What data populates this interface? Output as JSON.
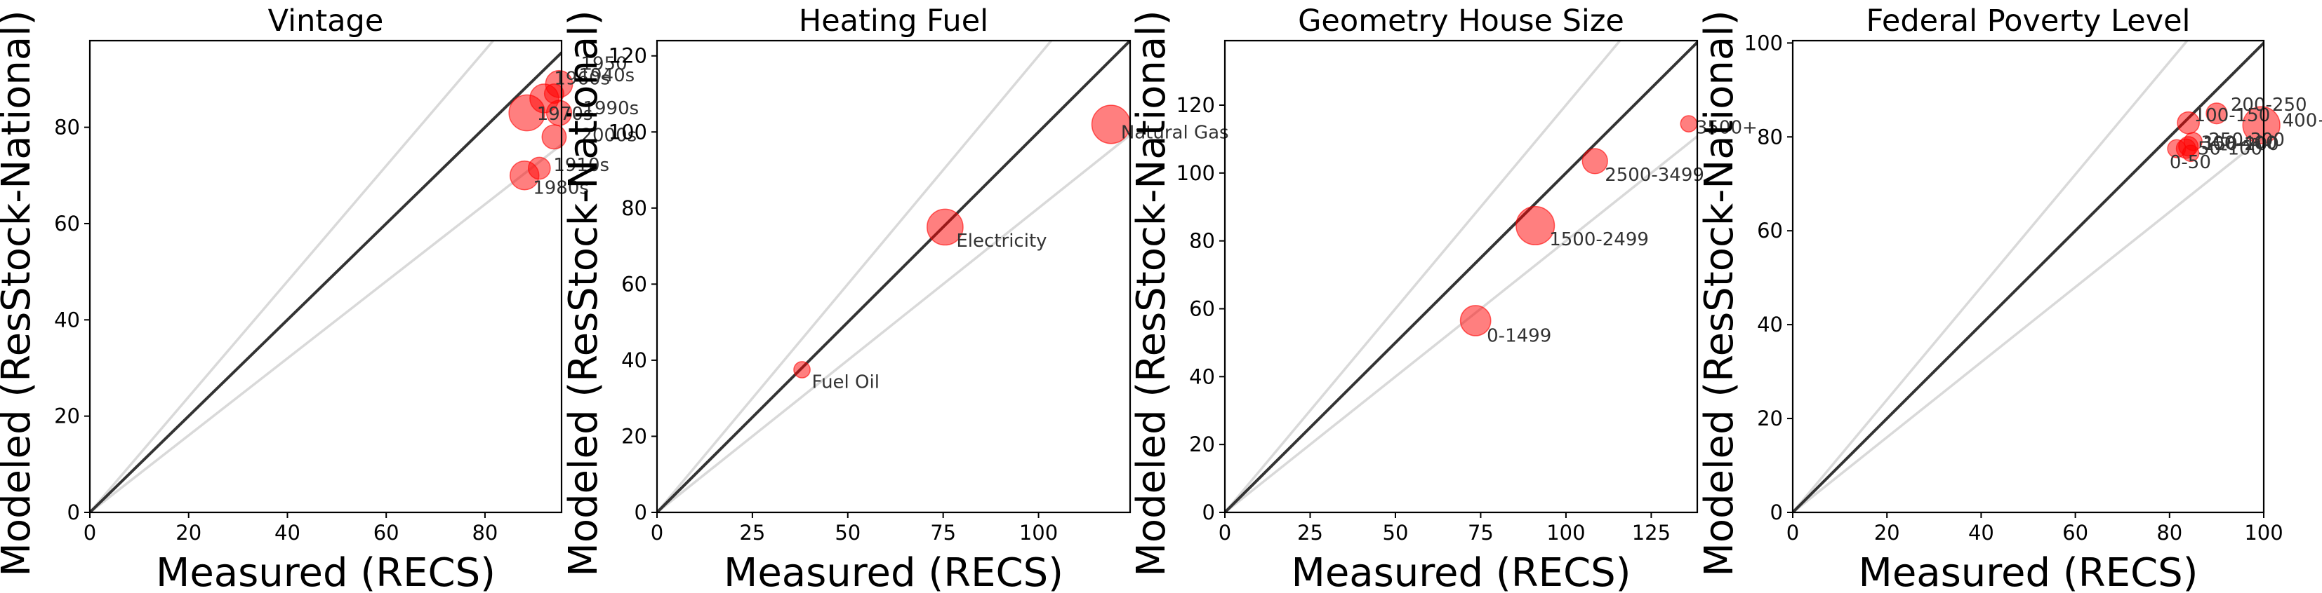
{
  "colors": {
    "point": "#ff0000",
    "identity_line": "#333333",
    "reference_lines": "#d9d9d9"
  },
  "chart_data": [
    {
      "type": "scatter",
      "title": "Vintage",
      "xlabel": "Measured (RECS)",
      "ylabel": "Modeled (ResStock-National)",
      "xlim": [
        0,
        95.5
      ],
      "ylim": [
        0,
        98
      ],
      "xticks": [
        0,
        20,
        40,
        60,
        80
      ],
      "yticks": [
        0,
        20,
        40,
        60,
        80
      ],
      "reference_lines": "y = x (dark); y = 1.2x and y = 0.8x (light gray)",
      "points": [
        {
          "label": "1950",
          "x": 94,
          "y": 87,
          "weight": 5
        },
        {
          "label": "1960s",
          "x": 92,
          "y": 86,
          "weight": 14
        },
        {
          "label": "1970s",
          "x": 88.5,
          "y": 83,
          "weight": 24
        },
        {
          "label": "1940s",
          "x": 95,
          "y": 89,
          "weight": 12
        },
        {
          "label": "1990s",
          "x": 95,
          "y": 83,
          "weight": 10
        },
        {
          "label": "2000s",
          "x": 94,
          "y": 78,
          "weight": 9
        },
        {
          "label": "1910s",
          "x": 91,
          "y": 71.5,
          "weight": 7
        },
        {
          "label": "1980s",
          "x": 88,
          "y": 70,
          "weight": 14
        }
      ]
    },
    {
      "type": "scatter",
      "title": "Heating Fuel",
      "xlabel": "Measured (RECS)",
      "ylabel": "Modeled (ResStock-National)",
      "xlim": [
        0,
        124
      ],
      "ylim": [
        0,
        124
      ],
      "xticks": [
        0,
        25,
        50,
        75,
        100
      ],
      "yticks": [
        0,
        20,
        40,
        60,
        80,
        100,
        120
      ],
      "reference_lines": "y = x (dark); y = 1.2x and y = 0.8x (light gray)",
      "points": [
        {
          "label": "Natural Gas",
          "x": 119,
          "y": 102,
          "weight": 28
        },
        {
          "label": "Electricity",
          "x": 75.5,
          "y": 75,
          "weight": 24
        },
        {
          "label": "Fuel Oil",
          "x": 38,
          "y": 37.5,
          "weight": 3
        }
      ]
    },
    {
      "type": "scatter",
      "title": "Geometry House Size",
      "xlabel": "Measured (RECS)",
      "ylabel": "Modeled (ResStock-National)",
      "xlim": [
        0,
        138.5
      ],
      "ylim": [
        0,
        139
      ],
      "xticks": [
        0,
        25,
        50,
        75,
        100,
        125
      ],
      "yticks": [
        0,
        20,
        40,
        60,
        80,
        100,
        120
      ],
      "reference_lines": "y = x (dark); y = 1.2x and y = 0.8x (light gray)",
      "points": [
        {
          "label": "3500+",
          "x": 136,
          "y": 114.5,
          "weight": 3
        },
        {
          "label": "2500-3499",
          "x": 108.5,
          "y": 103.5,
          "weight": 10
        },
        {
          "label": "1500-2499",
          "x": 91,
          "y": 84.5,
          "weight": 28
        },
        {
          "label": "0-1499",
          "x": 73.5,
          "y": 56.5,
          "weight": 16
        }
      ]
    },
    {
      "type": "scatter",
      "title": "Federal Poverty Level",
      "xlabel": "Measured (RECS)",
      "ylabel": "Modeled (ResStock-National)",
      "xlim": [
        0,
        100
      ],
      "ylim": [
        0,
        100.5
      ],
      "xticks": [
        0,
        20,
        40,
        60,
        80,
        100
      ],
      "yticks": [
        0,
        20,
        40,
        60,
        80,
        100
      ],
      "reference_lines": "y = x (dark); y = 1.2x and y = 0.8x (light gray)",
      "points": [
        {
          "label": "200-250",
          "x": 90,
          "y": 85,
          "weight": 6
        },
        {
          "label": "250-300",
          "x": 85,
          "y": 79,
          "weight": 4
        },
        {
          "label": "300-400",
          "x": 84,
          "y": 78,
          "weight": 5
        },
        {
          "label": "400+",
          "x": 99.5,
          "y": 82.5,
          "weight": 26
        },
        {
          "label": "150-200",
          "x": 83.5,
          "y": 77.5,
          "weight": 5
        },
        {
          "label": "50-100",
          "x": 84.5,
          "y": 76.5,
          "weight": 3
        },
        {
          "label": "0-50",
          "x": 81.5,
          "y": 77.5,
          "weight": 4
        },
        {
          "label": "100-150",
          "x": 84,
          "y": 83,
          "weight": 7
        }
      ]
    }
  ]
}
